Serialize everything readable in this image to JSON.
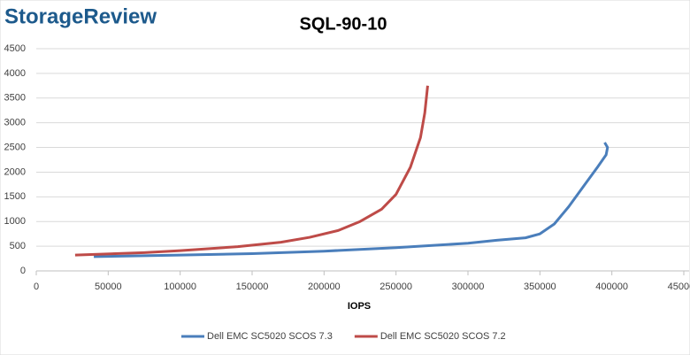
{
  "chart_data": {
    "type": "line",
    "brand": "StorageReview",
    "title": "SQL-90-10",
    "x_label": "IOPS",
    "xlim": [
      0,
      450000
    ],
    "xticks": [
      0,
      50000,
      100000,
      150000,
      200000,
      250000,
      300000,
      350000,
      400000,
      450000
    ],
    "ylim": [
      0,
      4500
    ],
    "yticks": [
      0,
      500,
      1000,
      1500,
      2000,
      2500,
      3000,
      3500,
      4000,
      4500
    ],
    "grid": true,
    "legend": "bottom",
    "series": [
      {
        "name": "Dell EMC SC5020 SCOS 7.3",
        "color": "#4a7ebb",
        "x": [
          40000,
          100000,
          150000,
          200000,
          250000,
          300000,
          320000,
          340000,
          350000,
          360000,
          370000,
          380000,
          390000,
          396000,
          397000,
          395000
        ],
        "values": [
          290,
          320,
          350,
          400,
          470,
          560,
          620,
          670,
          750,
          950,
          1300,
          1700,
          2100,
          2350,
          2500,
          2600
        ]
      },
      {
        "name": "Dell EMC SC5020 SCOS 7.2",
        "color": "#be4b48",
        "x": [
          27000,
          75000,
          100000,
          140000,
          170000,
          190000,
          210000,
          225000,
          240000,
          250000,
          260000,
          267000,
          270000,
          272000
        ],
        "values": [
          320,
          370,
          410,
          490,
          580,
          680,
          820,
          1000,
          1250,
          1550,
          2100,
          2700,
          3200,
          3750
        ]
      }
    ]
  }
}
